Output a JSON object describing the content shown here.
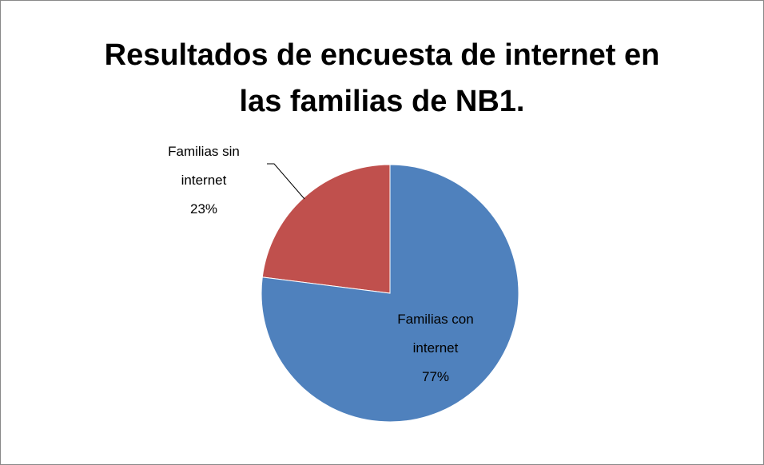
{
  "chart_data": {
    "type": "pie",
    "title": "Resultados de encuesta de internet en las familias de NB1.",
    "categories": [
      "Familias con internet",
      "Familias sin internet"
    ],
    "values": [
      77,
      23
    ],
    "value_labels": [
      "77%",
      "23%"
    ],
    "colors": [
      "#4f81bd",
      "#c0504d"
    ]
  }
}
